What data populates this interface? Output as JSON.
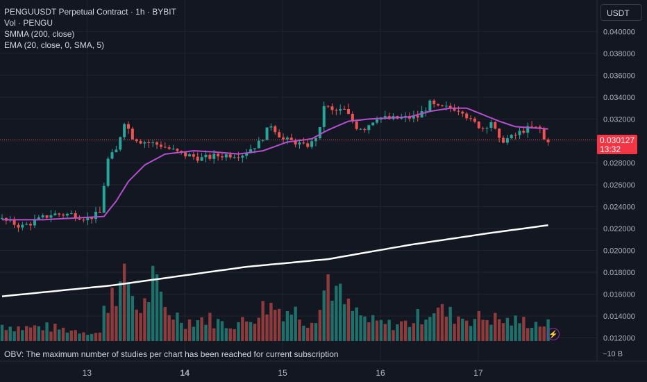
{
  "legend": {
    "symbol": "PENGUUSDT Perpetual Contract · 1h · BYBIT",
    "volume": "Vol · PENGU",
    "smma": "SMMA (200, close)",
    "ema": "EMA (20, close, 0, SMA, 5)"
  },
  "currency": "USDT",
  "last_price": "0.030127",
  "countdown": "13:32",
  "obv_message": "OBV: The maximum number of studies per chart has been reached for current subscription",
  "obv_axis_label": "−10 B",
  "alert_icon": "lightning-bolt-icon",
  "colors": {
    "background": "#131722",
    "up": "#26a69a",
    "down": "#ef5350",
    "vol_up": "#1f6f6a",
    "vol_down": "#8e3b3c",
    "ema": "#b64fcf",
    "smma": "#ffffff",
    "last_price_line": "#f23645"
  },
  "chart_data": {
    "type": "candlestick",
    "title": "PENGUUSDT Perpetual Contract · 1h · BYBIT",
    "y_axis": {
      "ticks": [
        "0.040000",
        "0.038000",
        "0.036000",
        "0.034000",
        "0.032000",
        "0.030000",
        "0.028000",
        "0.026000",
        "0.024000",
        "0.022000",
        "0.020000",
        "0.018000",
        "0.016000",
        "0.014000",
        "0.012000"
      ],
      "range": [
        0.0114,
        0.0418
      ]
    },
    "x_axis": {
      "ticks": [
        {
          "label": "13",
          "bold": false
        },
        {
          "label": "14",
          "bold": true
        },
        {
          "label": "15",
          "bold": false
        },
        {
          "label": "16",
          "bold": false
        },
        {
          "label": "17",
          "bold": false
        }
      ]
    },
    "price_keypoints": [
      [
        0,
        0.0229
      ],
      [
        6,
        0.0222
      ],
      [
        10,
        0.0228
      ],
      [
        13,
        0.0233
      ],
      [
        18,
        0.0233
      ],
      [
        22,
        0.0229
      ],
      [
        25,
        0.0234
      ],
      [
        26,
        0.026
      ],
      [
        27,
        0.0283
      ],
      [
        29,
        0.0291
      ],
      [
        30,
        0.0305
      ],
      [
        31,
        0.0318
      ],
      [
        33,
        0.0304
      ],
      [
        35,
        0.03
      ],
      [
        40,
        0.0296
      ],
      [
        45,
        0.0288
      ],
      [
        50,
        0.0284
      ],
      [
        55,
        0.0287
      ],
      [
        60,
        0.0288
      ],
      [
        64,
        0.0298
      ],
      [
        67,
        0.0315
      ],
      [
        70,
        0.0301
      ],
      [
        73,
        0.0299
      ],
      [
        75,
        0.0295
      ],
      [
        77,
        0.0298
      ],
      [
        79,
        0.031
      ],
      [
        80,
        0.0333
      ],
      [
        82,
        0.0327
      ],
      [
        85,
        0.0328
      ],
      [
        88,
        0.0313
      ],
      [
        90,
        0.0312
      ],
      [
        93,
        0.0322
      ],
      [
        96,
        0.032
      ],
      [
        100,
        0.0321
      ],
      [
        103,
        0.0322
      ],
      [
        106,
        0.0334
      ],
      [
        108,
        0.033
      ],
      [
        112,
        0.033
      ],
      [
        114,
        0.0328
      ],
      [
        116,
        0.0318
      ],
      [
        119,
        0.0312
      ],
      [
        121,
        0.0318
      ],
      [
        123,
        0.03
      ],
      [
        126,
        0.0303
      ],
      [
        129,
        0.031
      ],
      [
        131,
        0.0312
      ],
      [
        133,
        0.0311
      ],
      [
        134,
        0.0301
      ]
    ],
    "volume_keypoints": [
      [
        0,
        0.25
      ],
      [
        5,
        0.2
      ],
      [
        10,
        0.22
      ],
      [
        15,
        0.18
      ],
      [
        20,
        0.15
      ],
      [
        24,
        0.12
      ],
      [
        25,
        0.45
      ],
      [
        26,
        0.6
      ],
      [
        27,
        0.85
      ],
      [
        29,
        0.8
      ],
      [
        31,
        0.95
      ],
      [
        33,
        0.5
      ],
      [
        35,
        0.55
      ],
      [
        37,
        0.9
      ],
      [
        40,
        0.5
      ],
      [
        45,
        0.3
      ],
      [
        50,
        0.35
      ],
      [
        55,
        0.25
      ],
      [
        60,
        0.3
      ],
      [
        65,
        0.55
      ],
      [
        68,
        0.5
      ],
      [
        72,
        0.45
      ],
      [
        75,
        0.3
      ],
      [
        78,
        0.5
      ],
      [
        80,
        1.0
      ],
      [
        82,
        0.75
      ],
      [
        85,
        0.5
      ],
      [
        90,
        0.3
      ],
      [
        95,
        0.25
      ],
      [
        100,
        0.28
      ],
      [
        103,
        0.4
      ],
      [
        106,
        0.5
      ],
      [
        110,
        0.4
      ],
      [
        115,
        0.35
      ],
      [
        120,
        0.35
      ],
      [
        124,
        0.3
      ],
      [
        128,
        0.3
      ],
      [
        134,
        0.25
      ]
    ],
    "ema_keypoints": [
      [
        0,
        0.0228
      ],
      [
        10,
        0.0228
      ],
      [
        20,
        0.023
      ],
      [
        25,
        0.0231
      ],
      [
        28,
        0.0245
      ],
      [
        31,
        0.0263
      ],
      [
        35,
        0.0278
      ],
      [
        40,
        0.0288
      ],
      [
        47,
        0.0291
      ],
      [
        52,
        0.029
      ],
      [
        58,
        0.0288
      ],
      [
        64,
        0.0291
      ],
      [
        70,
        0.0299
      ],
      [
        76,
        0.0302
      ],
      [
        80,
        0.031
      ],
      [
        85,
        0.0318
      ],
      [
        90,
        0.032
      ],
      [
        95,
        0.0321
      ],
      [
        100,
        0.0322
      ],
      [
        105,
        0.0327
      ],
      [
        110,
        0.033
      ],
      [
        114,
        0.033
      ],
      [
        118,
        0.0324
      ],
      [
        122,
        0.0318
      ],
      [
        126,
        0.0313
      ],
      [
        130,
        0.0312
      ],
      [
        134,
        0.0311
      ]
    ],
    "smma_keypoints": [
      [
        0,
        0.0158
      ],
      [
        27,
        0.0168
      ],
      [
        60,
        0.0185
      ],
      [
        80,
        0.0192
      ],
      [
        100,
        0.0205
      ],
      [
        120,
        0.0216
      ],
      [
        134,
        0.0223
      ]
    ]
  }
}
